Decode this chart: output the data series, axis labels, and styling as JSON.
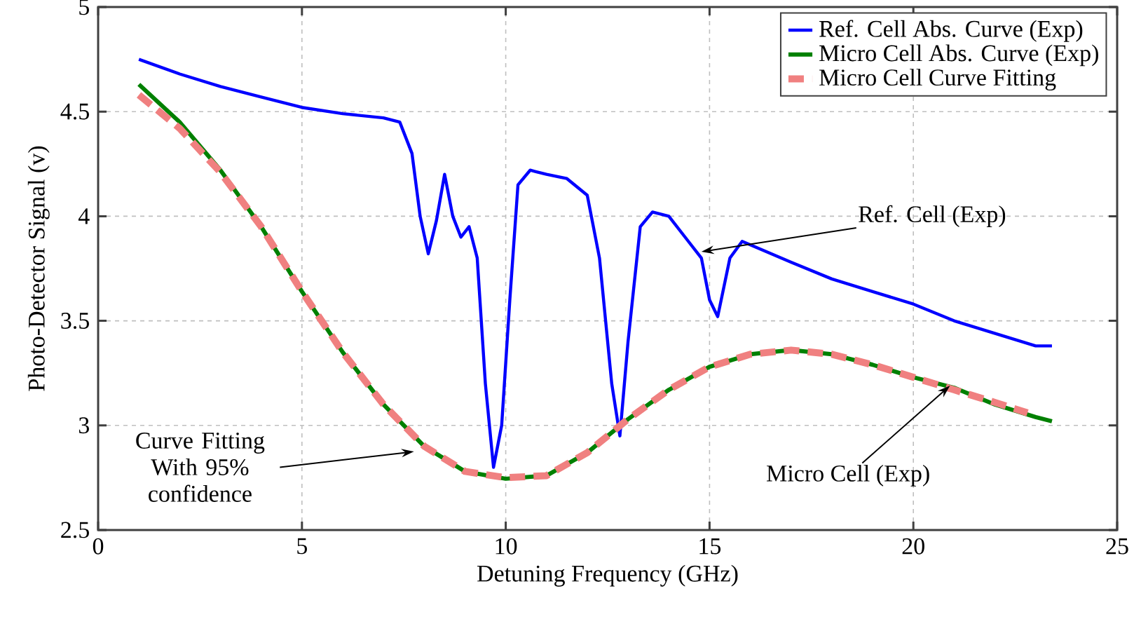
{
  "chart_data": {
    "type": "line",
    "xlabel": "Detuning Frequency (GHz)",
    "ylabel": "Photo-Detector Signal (v)",
    "xlim": [
      0,
      25
    ],
    "xticks": [
      0,
      5,
      10,
      15,
      20,
      25
    ],
    "ylim": [
      2.5,
      5
    ],
    "yticks": [
      2.5,
      3,
      3.5,
      4,
      4.5,
      5
    ],
    "grid": true,
    "legend": "top right",
    "marker": "none",
    "series": [
      {
        "name": "Ref. Cell Abs. Curve (Exp)",
        "color": "#0000ff",
        "line_style": "solid",
        "x": [
          1,
          2,
          3,
          4,
          5,
          6,
          7,
          7.4,
          7.7,
          7.9,
          8.1,
          8.3,
          8.5,
          8.7,
          8.9,
          9.1,
          9.3,
          9.5,
          9.7,
          9.9,
          10.1,
          10.3,
          10.6,
          11,
          11.5,
          12,
          12.3,
          12.6,
          12.8,
          13.0,
          13.3,
          13.6,
          14,
          14.4,
          14.8,
          15.0,
          15.2,
          15.5,
          15.8,
          17,
          18,
          19,
          20,
          21,
          22,
          23,
          23.4
        ],
        "values": [
          4.75,
          4.68,
          4.62,
          4.57,
          4.52,
          4.49,
          4.47,
          4.45,
          4.3,
          4.0,
          3.82,
          3.98,
          4.2,
          4.0,
          3.9,
          3.95,
          3.8,
          3.2,
          2.8,
          3.0,
          3.6,
          4.15,
          4.22,
          4.2,
          4.18,
          4.1,
          3.8,
          3.2,
          2.95,
          3.4,
          3.95,
          4.02,
          4.0,
          3.9,
          3.8,
          3.6,
          3.52,
          3.8,
          3.88,
          3.78,
          3.7,
          3.64,
          3.58,
          3.5,
          3.44,
          3.38,
          3.38
        ]
      },
      {
        "name": "Micro Cell Abs. Curve (Exp)",
        "color": "#008000",
        "line_style": "solid",
        "x": [
          1,
          2,
          3,
          4,
          5,
          6,
          7,
          8,
          9,
          10,
          11,
          12,
          13,
          14,
          15,
          16,
          17,
          18,
          19,
          20,
          21,
          22,
          23,
          23.4
        ],
        "values": [
          4.63,
          4.45,
          4.22,
          3.95,
          3.64,
          3.35,
          3.1,
          2.9,
          2.78,
          2.745,
          2.76,
          2.87,
          3.03,
          3.17,
          3.28,
          3.34,
          3.36,
          3.34,
          3.29,
          3.23,
          3.18,
          3.1,
          3.04,
          3.02
        ]
      },
      {
        "name": "Micro Cell Curve Fitting",
        "color": "#f08080",
        "line_style": "dashed",
        "x": [
          1,
          2,
          3,
          4,
          5,
          6,
          7,
          8,
          9,
          10,
          11,
          12,
          13,
          14,
          15,
          16,
          17,
          18,
          19,
          20,
          21,
          22,
          22.8
        ],
        "values": [
          4.58,
          4.42,
          4.21,
          3.95,
          3.64,
          3.35,
          3.1,
          2.9,
          2.78,
          2.75,
          2.76,
          2.87,
          3.03,
          3.17,
          3.28,
          3.34,
          3.36,
          3.34,
          3.29,
          3.23,
          3.17,
          3.11,
          3.06
        ]
      }
    ],
    "annotations": [
      {
        "text": "Ref. Cell (Exp)",
        "x": 14.8,
        "y": 3.83
      },
      {
        "text": "Micro Cell (Exp)",
        "x": 20.9,
        "y": 3.19
      },
      "Curve Fitting With 95% confidence"
    ]
  }
}
